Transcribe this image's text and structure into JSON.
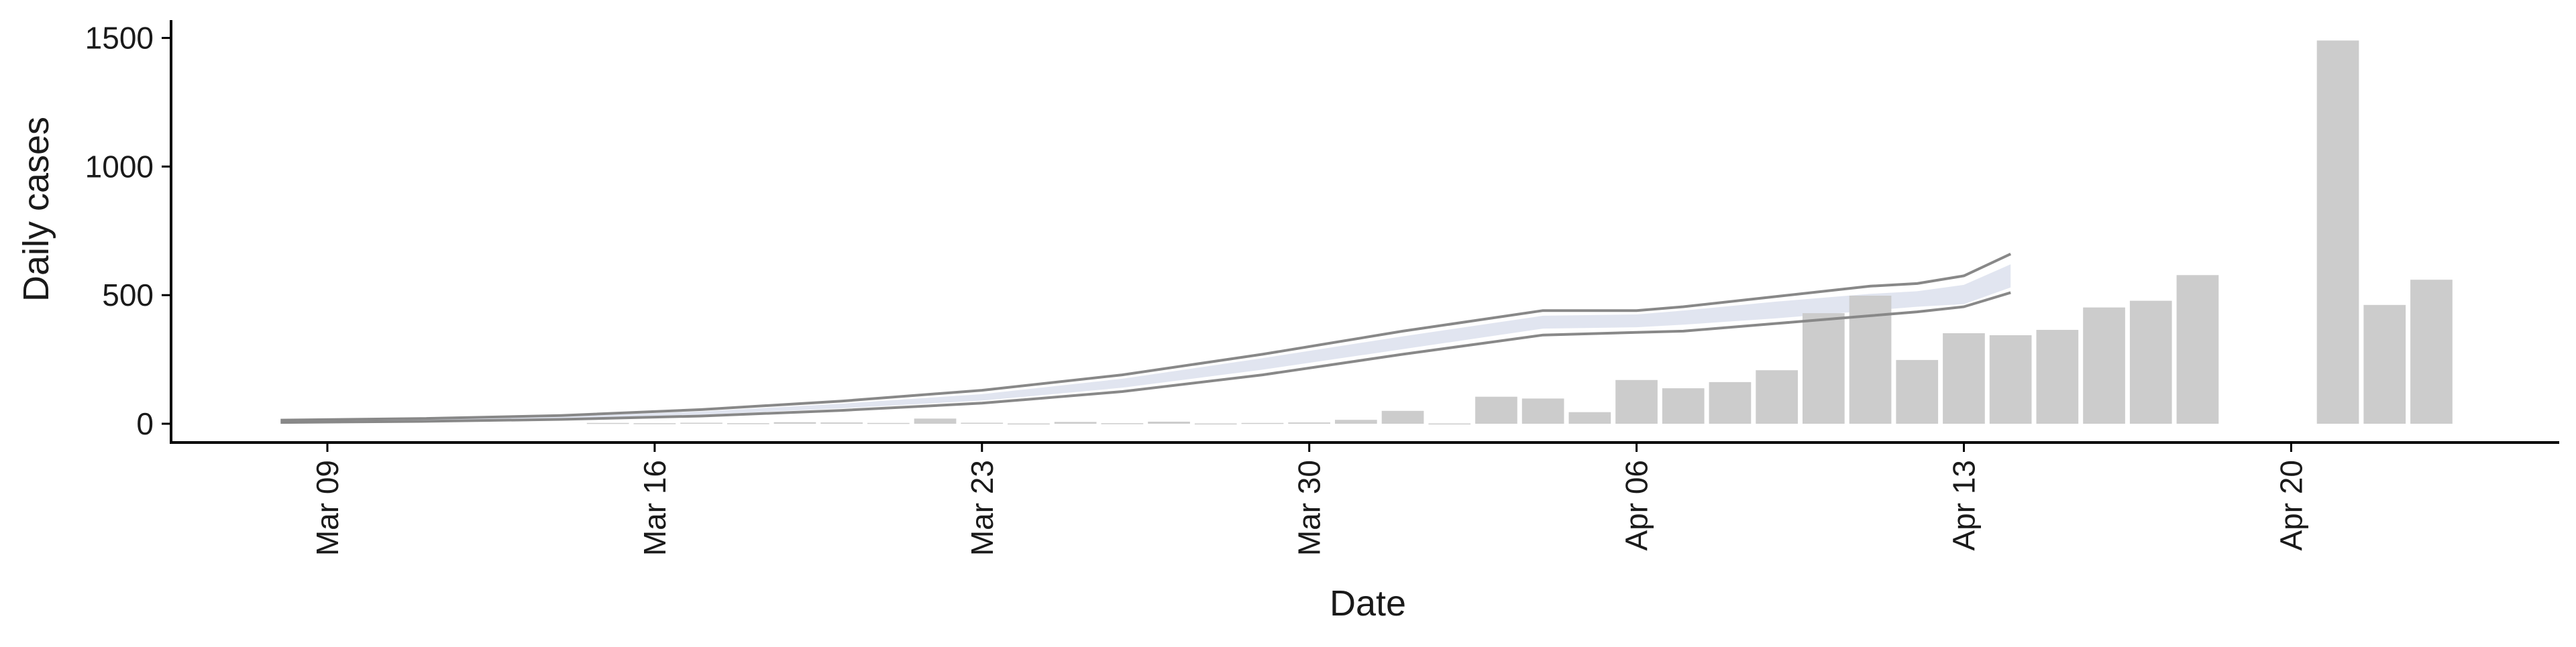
{
  "chart_data": {
    "type": "bar",
    "title": "",
    "xlabel": "Date",
    "ylabel": "Daily cases",
    "ylim": [
      -60,
      1590
    ],
    "xlim": [
      "2020-03-07",
      "2020-04-26"
    ],
    "y_ticks": [
      0,
      500,
      1000,
      1500
    ],
    "x_ticks": [
      "2020-03-09",
      "2020-03-16",
      "2020-03-23",
      "2020-03-30",
      "2020-04-06",
      "2020-04-13",
      "2020-04-20"
    ],
    "x_tick_labels": [
      "Mar 09",
      "Mar 16",
      "Mar 23",
      "Mar 30",
      "Apr 06",
      "Apr 13",
      "Apr 20"
    ],
    "grid": false,
    "legend": "none",
    "series": [
      {
        "kind": "bar",
        "color": "#cccccc",
        "x": [
          "2020-03-15",
          "2020-03-16",
          "2020-03-17",
          "2020-03-18",
          "2020-03-19",
          "2020-03-20",
          "2020-03-21",
          "2020-03-22",
          "2020-03-23",
          "2020-03-24",
          "2020-03-25",
          "2020-03-26",
          "2020-03-27",
          "2020-03-28",
          "2020-03-29",
          "2020-03-30",
          "2020-03-31",
          "2020-04-01",
          "2020-04-02",
          "2020-04-03",
          "2020-04-04",
          "2020-04-05",
          "2020-04-06",
          "2020-04-07",
          "2020-04-08",
          "2020-04-09",
          "2020-04-10",
          "2020-04-11",
          "2020-04-12",
          "2020-04-13",
          "2020-04-14",
          "2020-04-15",
          "2020-04-16",
          "2020-04-17",
          "2020-04-18",
          "2020-04-21",
          "2020-04-22",
          "2020-04-23"
        ],
        "values": [
          3,
          2,
          4,
          2,
          6,
          5,
          3,
          20,
          4,
          1,
          7,
          2,
          8,
          1,
          3,
          5,
          15,
          50,
          1,
          105,
          98,
          45,
          170,
          138,
          162,
          208,
          430,
          498,
          248,
          352,
          344,
          365,
          452,
          478,
          578,
          1490,
          462,
          560
        ]
      },
      {
        "kind": "band",
        "color": "#c9cfe3",
        "x": [
          "2020-03-08",
          "2020-03-11",
          "2020-03-14",
          "2020-03-17",
          "2020-03-20",
          "2020-03-23",
          "2020-03-26",
          "2020-03-29",
          "2020-04-01",
          "2020-04-04",
          "2020-04-06",
          "2020-04-07",
          "2020-04-09",
          "2020-04-11",
          "2020-04-12",
          "2020-04-13",
          "2020-04-14"
        ],
        "lower": [
          8,
          12,
          20,
          35,
          60,
          90,
          140,
          210,
          290,
          370,
          375,
          385,
          410,
          440,
          455,
          465,
          530
        ],
        "upper": [
          12,
          18,
          28,
          48,
          78,
          115,
          175,
          255,
          340,
          420,
          425,
          440,
          475,
          505,
          515,
          540,
          620
        ]
      },
      {
        "kind": "line",
        "color": "#888888",
        "x": [
          "2020-03-08",
          "2020-03-11",
          "2020-03-14",
          "2020-03-17",
          "2020-03-20",
          "2020-03-23",
          "2020-03-26",
          "2020-03-29",
          "2020-04-01",
          "2020-04-04",
          "2020-04-06",
          "2020-04-07",
          "2020-04-09",
          "2020-04-11",
          "2020-04-12",
          "2020-04-13",
          "2020-04-14"
        ],
        "values": [
          5,
          9,
          17,
          30,
          52,
          80,
          125,
          190,
          270,
          345,
          355,
          360,
          390,
          420,
          435,
          455,
          510
        ]
      },
      {
        "kind": "line",
        "color": "#888888",
        "x": [
          "2020-03-08",
          "2020-03-11",
          "2020-03-14",
          "2020-03-17",
          "2020-03-20",
          "2020-03-23",
          "2020-03-26",
          "2020-03-29",
          "2020-04-01",
          "2020-04-04",
          "2020-04-06",
          "2020-04-07",
          "2020-04-09",
          "2020-04-11",
          "2020-04-12",
          "2020-04-13",
          "2020-04-14"
        ],
        "values": [
          14,
          20,
          32,
          55,
          88,
          130,
          190,
          270,
          360,
          440,
          440,
          455,
          495,
          535,
          545,
          575,
          660
        ]
      }
    ]
  }
}
